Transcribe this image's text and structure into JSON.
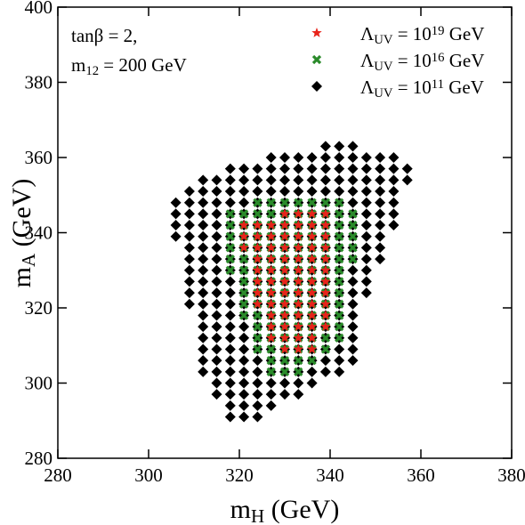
{
  "chart_data": {
    "type": "scatter",
    "xlabel": "m_{H} (GeV)",
    "ylabel": "m_{A} (GeV)",
    "annotations": [
      "tanβ = 2,",
      "m_{12} = 200 GeV"
    ],
    "xlim": [
      280,
      380
    ],
    "xticks": [
      280,
      300,
      320,
      340,
      360,
      380
    ],
    "ylim": [
      280,
      400
    ],
    "yticks": [
      280,
      300,
      320,
      340,
      360,
      380,
      400
    ],
    "legend": "upper right",
    "series": [
      {
        "name": "Λ_{UV} = 10^{19} GeV",
        "color": "#e8231a",
        "marker": "star",
        "x": [
          330,
          333,
          336,
          339,
          321,
          324,
          327,
          330,
          333,
          336,
          339,
          321,
          324,
          327,
          330,
          333,
          336,
          339,
          321,
          324,
          327,
          330,
          333,
          336,
          339,
          324,
          327,
          330,
          333,
          336,
          339,
          324,
          327,
          330,
          333,
          336,
          339,
          324,
          327,
          330,
          333,
          336,
          339,
          324,
          327,
          330,
          333,
          336,
          339,
          324,
          327,
          330,
          333,
          336,
          339,
          327,
          330,
          333,
          336,
          339,
          327,
          330,
          333,
          336,
          339,
          327,
          330,
          333,
          336,
          330,
          333,
          336
        ],
        "values": [
          345,
          345,
          345,
          345,
          342,
          342,
          342,
          342,
          342,
          342,
          342,
          339,
          339,
          339,
          339,
          339,
          339,
          339,
          336,
          336,
          336,
          336,
          336,
          336,
          336,
          333,
          333,
          333,
          333,
          333,
          333,
          330,
          330,
          330,
          330,
          330,
          330,
          327,
          327,
          327,
          327,
          327,
          327,
          324,
          324,
          324,
          324,
          324,
          324,
          321,
          321,
          321,
          321,
          321,
          321,
          318,
          318,
          318,
          318,
          318,
          315,
          315,
          315,
          315,
          315,
          312,
          312,
          312,
          312,
          309,
          309,
          309
        ]
      },
      {
        "name": "Λ_{UV} = 10^{16} GeV",
        "color": "#2a8a2a",
        "marker": "cross",
        "x": [
          324,
          327,
          330,
          333,
          336,
          339,
          342,
          318,
          321,
          324,
          327,
          330,
          333,
          336,
          339,
          342,
          345,
          318,
          321,
          324,
          327,
          330,
          333,
          336,
          339,
          342,
          345,
          318,
          321,
          324,
          327,
          330,
          333,
          336,
          339,
          342,
          345,
          318,
          321,
          324,
          327,
          330,
          333,
          336,
          339,
          342,
          345,
          318,
          321,
          324,
          327,
          330,
          333,
          336,
          339,
          342,
          345,
          318,
          321,
          324,
          327,
          330,
          333,
          336,
          339,
          342,
          321,
          324,
          327,
          330,
          333,
          336,
          339,
          342,
          321,
          324,
          327,
          330,
          333,
          336,
          339,
          342,
          321,
          324,
          327,
          330,
          333,
          336,
          339,
          342,
          321,
          324,
          327,
          330,
          333,
          336,
          339,
          342,
          324,
          327,
          330,
          333,
          336,
          339,
          342,
          324,
          327,
          330,
          333,
          336,
          339,
          342,
          324,
          327,
          330,
          333,
          336,
          339,
          327,
          330,
          333,
          336,
          327,
          330,
          333
        ],
        "values": [
          348,
          348,
          348,
          348,
          348,
          348,
          348,
          345,
          345,
          345,
          345,
          345,
          345,
          345,
          345,
          345,
          345,
          342,
          342,
          342,
          342,
          342,
          342,
          342,
          342,
          342,
          342,
          339,
          339,
          339,
          339,
          339,
          339,
          339,
          339,
          339,
          339,
          336,
          336,
          336,
          336,
          336,
          336,
          336,
          336,
          336,
          336,
          333,
          333,
          333,
          333,
          333,
          333,
          333,
          333,
          333,
          333,
          330,
          330,
          330,
          330,
          330,
          330,
          330,
          330,
          330,
          327,
          327,
          327,
          327,
          327,
          327,
          327,
          327,
          324,
          324,
          324,
          324,
          324,
          324,
          324,
          324,
          321,
          321,
          321,
          321,
          321,
          321,
          321,
          321,
          318,
          318,
          318,
          318,
          318,
          318,
          318,
          318,
          315,
          315,
          315,
          315,
          315,
          315,
          315,
          312,
          312,
          312,
          312,
          312,
          312,
          312,
          309,
          309,
          309,
          309,
          309,
          309,
          306,
          306,
          306,
          306,
          303,
          303,
          303
        ]
      },
      {
        "name": "Λ_{UV} = 10^{11} GeV",
        "color": "#000000",
        "marker": "diamond",
        "x": [
          339,
          342,
          345,
          327,
          330,
          333,
          336,
          339,
          342,
          345,
          348,
          351,
          354,
          318,
          321,
          324,
          327,
          330,
          333,
          336,
          339,
          342,
          345,
          348,
          351,
          354,
          357,
          312,
          315,
          318,
          321,
          324,
          327,
          330,
          333,
          336,
          339,
          342,
          345,
          348,
          351,
          354,
          357,
          309,
          312,
          315,
          318,
          321,
          324,
          327,
          330,
          333,
          336,
          339,
          342,
          345,
          348,
          351,
          354,
          306,
          309,
          312,
          315,
          318,
          321,
          324,
          327,
          330,
          333,
          336,
          339,
          342,
          345,
          348,
          351,
          354,
          306,
          309,
          312,
          315,
          318,
          321,
          324,
          327,
          330,
          333,
          336,
          339,
          342,
          345,
          348,
          351,
          354,
          306,
          309,
          312,
          315,
          318,
          321,
          324,
          327,
          330,
          333,
          336,
          339,
          342,
          345,
          348,
          351,
          354,
          306,
          309,
          312,
          315,
          318,
          321,
          324,
          327,
          330,
          333,
          336,
          339,
          342,
          345,
          348,
          351,
          309,
          312,
          315,
          318,
          321,
          324,
          327,
          330,
          333,
          336,
          339,
          342,
          345,
          348,
          351,
          309,
          312,
          315,
          318,
          321,
          324,
          327,
          330,
          333,
          336,
          339,
          342,
          345,
          348,
          351,
          309,
          312,
          315,
          318,
          321,
          324,
          327,
          330,
          333,
          336,
          339,
          342,
          345,
          348,
          309,
          312,
          315,
          318,
          321,
          324,
          327,
          330,
          333,
          336,
          339,
          342,
          345,
          348,
          309,
          312,
          315,
          318,
          321,
          324,
          327,
          330,
          333,
          336,
          339,
          342,
          345,
          348,
          309,
          312,
          315,
          318,
          321,
          324,
          327,
          330,
          333,
          336,
          339,
          342,
          345,
          312,
          315,
          318,
          321,
          324,
          327,
          330,
          333,
          336,
          339,
          342,
          345,
          312,
          315,
          318,
          321,
          324,
          327,
          330,
          333,
          336,
          339,
          342,
          345,
          312,
          315,
          318,
          321,
          324,
          327,
          330,
          333,
          336,
          339,
          342,
          345,
          312,
          315,
          318,
          321,
          324,
          327,
          330,
          333,
          336,
          339,
          342,
          345,
          312,
          315,
          318,
          321,
          324,
          327,
          330,
          333,
          336,
          339,
          342,
          345,
          312,
          315,
          318,
          321,
          324,
          327,
          330,
          333,
          336,
          339,
          342,
          315,
          318,
          321,
          324,
          327,
          330,
          333,
          336,
          315,
          318,
          321,
          324,
          327,
          330,
          333,
          318,
          321,
          324,
          327,
          318,
          321,
          324
        ],
        "values": [
          363,
          363,
          363,
          360,
          360,
          360,
          360,
          360,
          360,
          360,
          360,
          360,
          360,
          357,
          357,
          357,
          357,
          357,
          357,
          357,
          357,
          357,
          357,
          357,
          357,
          357,
          357,
          354,
          354,
          354,
          354,
          354,
          354,
          354,
          354,
          354,
          354,
          354,
          354,
          354,
          354,
          354,
          354,
          351,
          351,
          351,
          351,
          351,
          351,
          351,
          351,
          351,
          351,
          351,
          351,
          351,
          351,
          351,
          351,
          348,
          348,
          348,
          348,
          348,
          348,
          348,
          348,
          348,
          348,
          348,
          348,
          348,
          348,
          348,
          348,
          348,
          345,
          345,
          345,
          345,
          345,
          345,
          345,
          345,
          345,
          345,
          345,
          345,
          345,
          345,
          345,
          345,
          345,
          342,
          342,
          342,
          342,
          342,
          342,
          342,
          342,
          342,
          342,
          342,
          342,
          342,
          342,
          342,
          342,
          342,
          339,
          339,
          339,
          339,
          339,
          339,
          339,
          339,
          339,
          339,
          339,
          339,
          339,
          339,
          339,
          339,
          336,
          336,
          336,
          336,
          336,
          336,
          336,
          336,
          336,
          336,
          336,
          336,
          336,
          336,
          336,
          333,
          333,
          333,
          333,
          333,
          333,
          333,
          333,
          333,
          333,
          333,
          333,
          333,
          333,
          333,
          330,
          330,
          330,
          330,
          330,
          330,
          330,
          330,
          330,
          330,
          330,
          330,
          330,
          330,
          327,
          327,
          327,
          327,
          327,
          327,
          327,
          327,
          327,
          327,
          327,
          327,
          327,
          327,
          324,
          324,
          324,
          324,
          324,
          324,
          324,
          324,
          324,
          324,
          324,
          324,
          324,
          324,
          321,
          321,
          321,
          321,
          321,
          321,
          321,
          321,
          321,
          321,
          321,
          321,
          321,
          318,
          318,
          318,
          318,
          318,
          318,
          318,
          318,
          318,
          318,
          318,
          318,
          315,
          315,
          315,
          315,
          315,
          315,
          315,
          315,
          315,
          315,
          315,
          315,
          312,
          312,
          312,
          312,
          312,
          312,
          312,
          312,
          312,
          312,
          312,
          312,
          309,
          309,
          309,
          309,
          309,
          309,
          309,
          309,
          309,
          309,
          309,
          309,
          306,
          306,
          306,
          306,
          306,
          306,
          306,
          306,
          306,
          306,
          306,
          306,
          303,
          303,
          303,
          303,
          303,
          303,
          303,
          303,
          303,
          303,
          303,
          300,
          300,
          300,
          300,
          300,
          300,
          300,
          300,
          297,
          297,
          297,
          297,
          297,
          297,
          297,
          294,
          294,
          294,
          294,
          291,
          291,
          291
        ]
      }
    ]
  }
}
